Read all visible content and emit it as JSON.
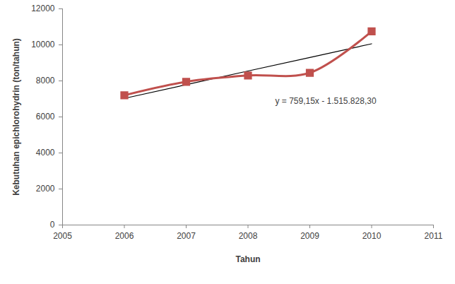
{
  "chart_data": {
    "type": "line",
    "x_label": "Tahun",
    "y_label": "Kebutuhan epichlorohydrin (ton/tahun)",
    "x": [
      2006,
      2007,
      2008,
      2009,
      2010
    ],
    "series": [
      {
        "color": "#c0504d",
        "marker": "square",
        "line_style": "smooth",
        "values": [
          7200,
          7950,
          8300,
          8450,
          10750
        ]
      },
      {
        "color": "#000000",
        "line_style": "solid",
        "values": [
          7030,
          7790,
          8550,
          9300,
          10060
        ]
      }
    ],
    "annotations": [
      {
        "text": "y = 759,15x - 1.515.828,30"
      }
    ],
    "xlim": [
      2005,
      2011
    ],
    "xticks": [
      2005,
      2006,
      2007,
      2008,
      2009,
      2010,
      2011
    ],
    "ylim": [
      0,
      12000
    ],
    "yticks": [
      0,
      2000,
      4000,
      6000,
      8000,
      10000,
      12000
    ],
    "grid": false
  }
}
